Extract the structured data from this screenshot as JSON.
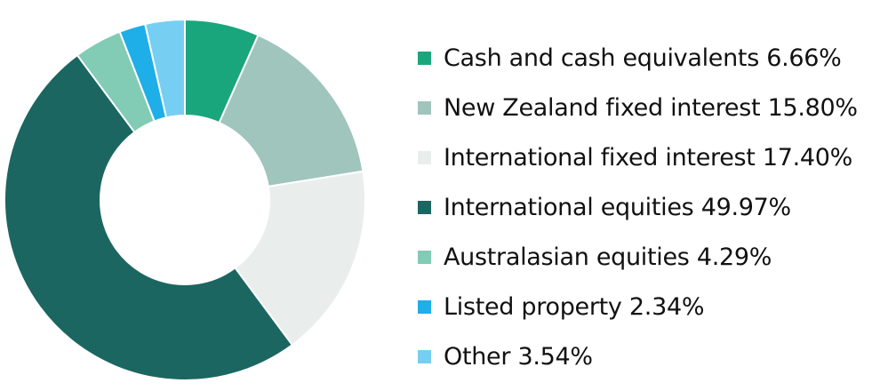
{
  "chart_data": {
    "type": "pie",
    "donut": true,
    "legend_position": "right",
    "slices": [
      {
        "label": "Cash and cash equivalents",
        "value": 6.66,
        "display": "6.66%",
        "color": "#1aa67c"
      },
      {
        "label": "New Zealand fixed interest",
        "value": 15.8,
        "display": "15.80%",
        "color": "#9fc5bc"
      },
      {
        "label": "International fixed interest",
        "value": 17.4,
        "display": "17.40%",
        "color": "#e9eeec"
      },
      {
        "label": "International equities",
        "value": 49.97,
        "display": "49.97%",
        "color": "#1b6660"
      },
      {
        "label": "Australasian equities",
        "value": 4.29,
        "display": "4.29%",
        "color": "#82cbb4"
      },
      {
        "label": "Listed property",
        "value": 2.34,
        "display": "2.34%",
        "color": "#1eaee8"
      },
      {
        "label": "Other",
        "value": 3.54,
        "display": "3.54%",
        "color": "#76cff2"
      }
    ]
  }
}
